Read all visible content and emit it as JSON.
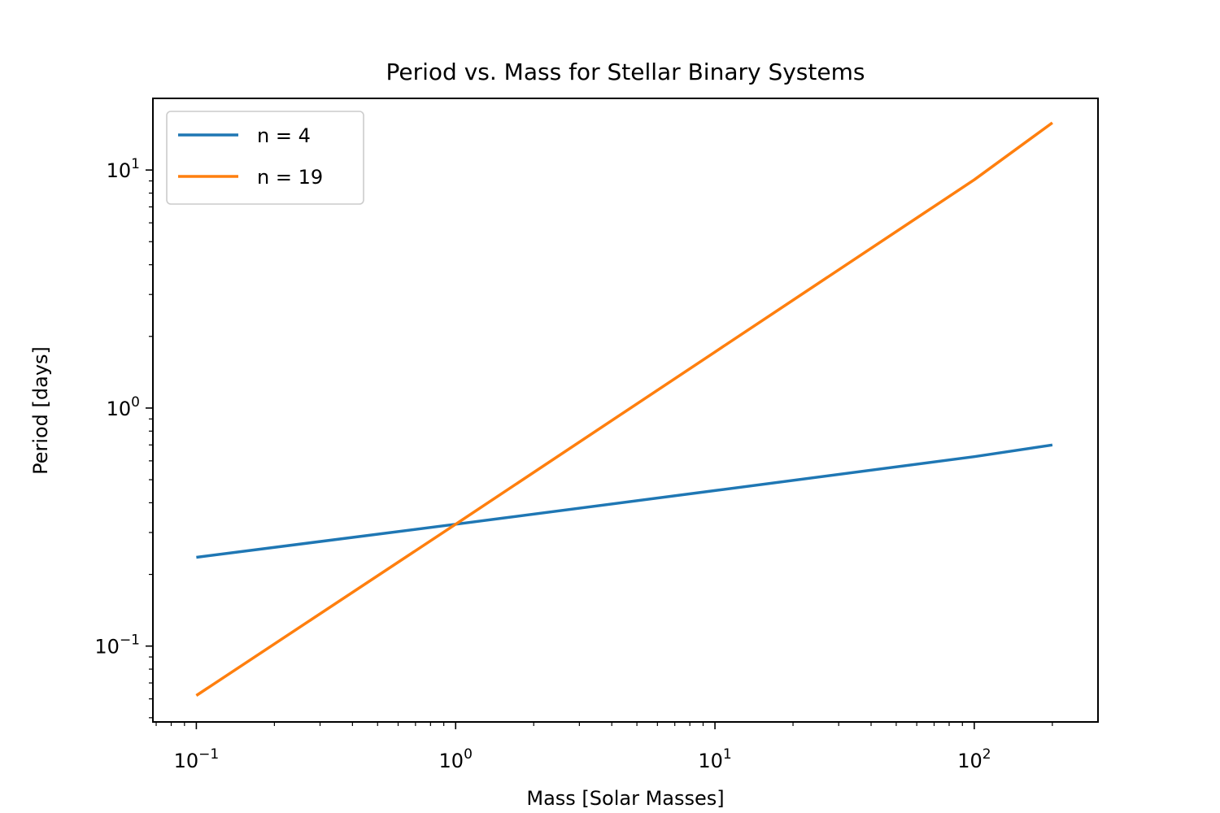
{
  "chart_data": {
    "type": "line",
    "title": "Period vs. Mass for Stellar Binary Systems",
    "xlabel": "Mass [Solar Masses]",
    "ylabel": "Period [days]",
    "xscale": "log",
    "yscale": "log",
    "xlim": [
      0.068,
      300
    ],
    "ylim": [
      0.048,
      20
    ],
    "grid": false,
    "legend_position": "top-left",
    "x_ticks": [
      {
        "value": 0.1,
        "base": "10",
        "exp": "−1"
      },
      {
        "value": 1,
        "base": "10",
        "exp": "0"
      },
      {
        "value": 10,
        "base": "10",
        "exp": "1"
      },
      {
        "value": 100,
        "base": "10",
        "exp": "2"
      }
    ],
    "y_ticks": [
      {
        "value": 0.1,
        "base": "10",
        "exp": "−1"
      },
      {
        "value": 1,
        "base": "10",
        "exp": "0"
      },
      {
        "value": 10,
        "base": "10",
        "exp": "1"
      }
    ],
    "series": [
      {
        "name": "n = 4",
        "color": "#1f77b4",
        "x": [
          0.1,
          1,
          10,
          100,
          200
        ],
        "y": [
          0.236,
          0.325,
          0.45,
          0.625,
          0.7
        ]
      },
      {
        "name": "n = 19",
        "color": "#ff7f0e",
        "x": [
          0.1,
          1,
          10,
          100,
          200
        ],
        "y": [
          0.062,
          0.325,
          1.72,
          9.1,
          15.8
        ]
      }
    ]
  }
}
